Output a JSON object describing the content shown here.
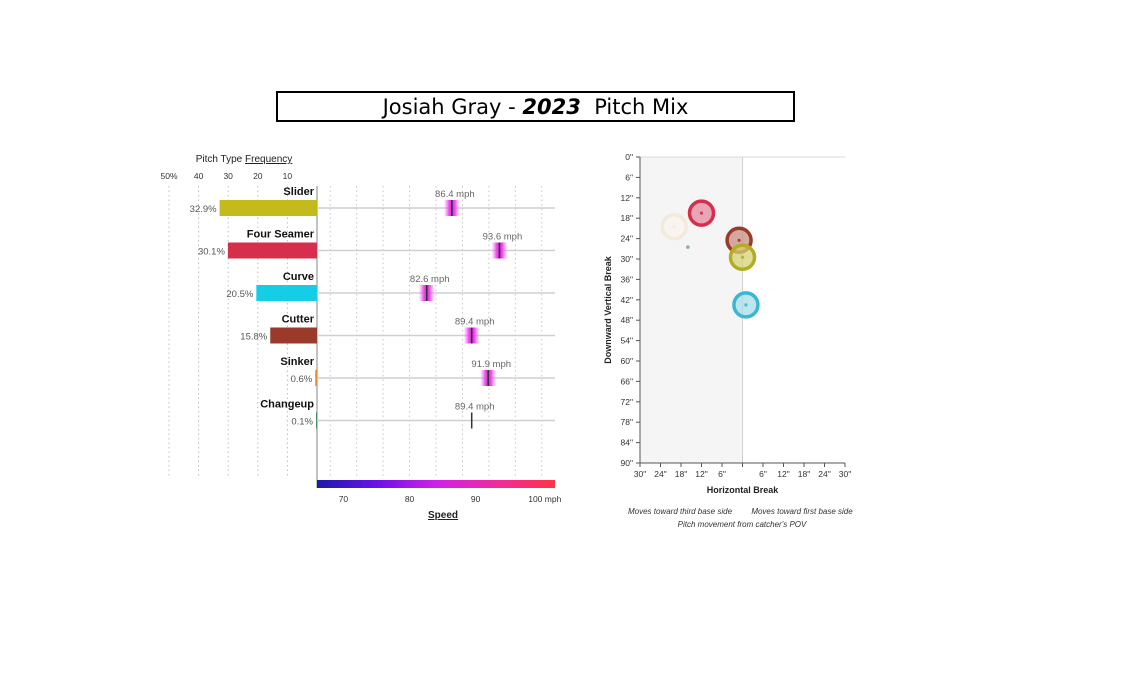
{
  "title": {
    "pitcher": "Josiah Gray",
    "sep": " - ",
    "year": "2023",
    "suffix": "Pitch Mix"
  },
  "chart_data": [
    {
      "type": "bar",
      "panel": "pitch-mix",
      "title": "Pitch Type Frequency",
      "title_prefix": "Pitch Type ",
      "title_underlined": "Frequency",
      "frequency_axis": {
        "ticks": [
          50,
          40,
          30,
          20,
          10
        ],
        "tick_labels": [
          "50%",
          "40",
          "30",
          "20",
          "10"
        ],
        "range": [
          0,
          50
        ]
      },
      "speed_axis": {
        "label": "Speed",
        "ticks": [
          70,
          80,
          90,
          100
        ],
        "tick_labels": [
          "70",
          "80",
          "90",
          "100 mph"
        ],
        "range": [
          66,
          102
        ]
      },
      "pitches": [
        {
          "name": "Slider",
          "frequency": 32.9,
          "freq_label": "32.9%",
          "speed": 86.4,
          "speed_label": "86.4 mph",
          "color": "#c2bb1b",
          "speed_spread": "wide"
        },
        {
          "name": "Four Seamer",
          "frequency": 30.1,
          "freq_label": "30.1%",
          "speed": 93.6,
          "speed_label": "93.6 mph",
          "color": "#d62f4c",
          "speed_spread": "wide"
        },
        {
          "name": "Curve",
          "frequency": 20.5,
          "freq_label": "20.5%",
          "speed": 82.6,
          "speed_label": "82.6 mph",
          "color": "#16cde6",
          "speed_spread": "wide"
        },
        {
          "name": "Cutter",
          "frequency": 15.8,
          "freq_label": "15.8%",
          "speed": 89.4,
          "speed_label": "89.4 mph",
          "color": "#9a3a2b",
          "speed_spread": "wide"
        },
        {
          "name": "Sinker",
          "frequency": 0.6,
          "freq_label": "0.6%",
          "speed": 91.9,
          "speed_label": "91.9 mph",
          "color": "#f08a2b",
          "speed_spread": "wide"
        },
        {
          "name": "Changeup",
          "frequency": 0.1,
          "freq_label": "0.1%",
          "speed": 89.4,
          "speed_label": "89.4 mph",
          "color": "#4a8a6a",
          "speed_spread": "none"
        }
      ],
      "grid": true
    },
    {
      "type": "scatter",
      "panel": "movement",
      "xlabel": "Horizontal Break",
      "ylabel": "Downward Vertical Break",
      "x_ticks": [
        -30,
        -24,
        -18,
        -12,
        -6,
        0,
        6,
        12,
        18,
        24,
        30
      ],
      "x_tick_labels": [
        "30\"",
        "24\"",
        "18\"",
        "12\"",
        "6\"",
        "",
        "6\"",
        "12\"",
        "18\"",
        "24\"",
        "30\""
      ],
      "y_ticks": [
        0,
        6,
        12,
        18,
        24,
        30,
        36,
        42,
        48,
        54,
        60,
        66,
        72,
        78,
        84,
        90
      ],
      "y_tick_labels": [
        "0\"",
        "6\"",
        "12\"",
        "18\"",
        "24\"",
        "30\"",
        "36\"",
        "42\"",
        "48\"",
        "54\"",
        "60\"",
        "66\"",
        "72\"",
        "78\"",
        "84\"",
        "90\""
      ],
      "xlim": [
        -30,
        30
      ],
      "ylim": [
        0,
        90
      ],
      "notes": {
        "left": "Moves toward third base side",
        "right": "Moves toward first base side",
        "bottom": "Pitch movement from catcher's POV"
      },
      "points": [
        {
          "pitch": "Four Seamer",
          "x": -12,
          "y": 16.5,
          "color": "#d62f4c",
          "fill": "#e48a9c"
        },
        {
          "pitch": "Sinker",
          "x": -20,
          "y": 20.5,
          "color": "#f3e9de",
          "fill": "#faf3ec"
        },
        {
          "pitch": "Cutter",
          "x": -1,
          "y": 24.5,
          "color": "#9a3a2b",
          "fill": "#c98d82"
        },
        {
          "pitch": "Slider",
          "x": 0,
          "y": 29.5,
          "color": "#b3ad23",
          "fill": "#d5d173"
        },
        {
          "pitch": "Changeup",
          "x": -16,
          "y": 26.5,
          "color": "#8fb09f",
          "fill": "#8fb09f"
        },
        {
          "pitch": "Curve",
          "x": 1,
          "y": 43.5,
          "color": "#3ab8d3",
          "fill": "#a9dde9"
        }
      ]
    }
  ]
}
